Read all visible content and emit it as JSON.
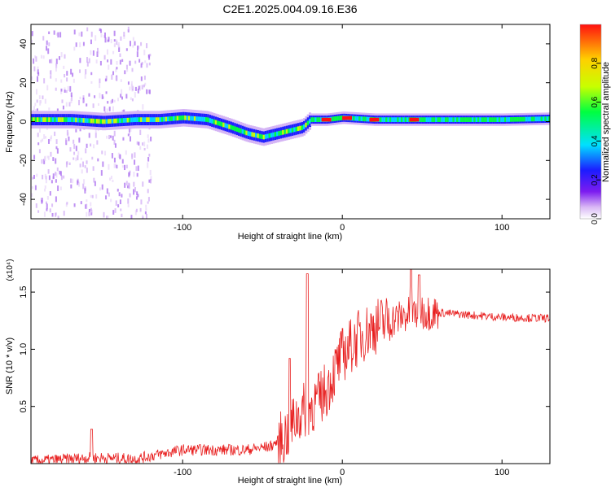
{
  "title": "C2E1.2025.004.09.16.E36",
  "colors": {
    "signal": "#e82020",
    "axis": "#000000",
    "colorbar_stops": [
      "#ffffff",
      "#d9b8f5",
      "#7c1cf0",
      "#1c1cff",
      "#00e0ff",
      "#00ff40",
      "#c8ff00",
      "#ffd000",
      "#ff1010"
    ]
  },
  "chart_data": [
    {
      "type": "heatmap",
      "title": "C2E1.2025.004.09.16.E36",
      "xlabel": "Height of straight line (km)",
      "ylabel": "Frequency (Hz)",
      "xlim": [
        -195,
        130
      ],
      "ylim": [
        -50,
        50
      ],
      "x_ticks": [
        -100,
        0,
        100
      ],
      "x_tick_labels": [
        "-100",
        "0",
        "100"
      ],
      "y_ticks": [
        -40,
        -20,
        0,
        20,
        40
      ],
      "y_tick_labels": [
        "-40",
        "-20",
        "0",
        "20",
        "40"
      ],
      "colorbar": {
        "label": "Normalized spectral amplitude",
        "range": [
          0,
          1
        ],
        "ticks": [
          0,
          0.2,
          0.4,
          0.6,
          0.8
        ],
        "tick_labels": [
          "0.0",
          "0.2",
          "0.4",
          "0.6",
          "0.8"
        ]
      },
      "ridge": {
        "x": [
          -195,
          -170,
          -150,
          -130,
          -115,
          -100,
          -85,
          -70,
          -60,
          -50,
          -40,
          -30,
          -25,
          -20,
          -10,
          0,
          20,
          50,
          80,
          100,
          130
        ],
        "y": [
          1,
          1,
          0,
          1,
          1,
          2,
          1,
          -3,
          -6,
          -8,
          -6,
          -4,
          -3,
          1,
          1,
          2,
          1,
          1,
          1,
          1,
          1.5
        ]
      },
      "peak_x": [
        -10,
        3,
        20,
        45
      ]
    },
    {
      "type": "line",
      "xlabel": "Height of straight line (km)",
      "ylabel": "SNR (10 * v/v)",
      "y_multiplier": "(x10⁴)",
      "xlim": [
        -195,
        130
      ],
      "ylim": [
        0,
        1.7
      ],
      "x_ticks": [
        -100,
        0,
        100
      ],
      "x_tick_labels": [
        "-100",
        "0",
        "100"
      ],
      "y_ticks": [
        0.5,
        1.0,
        1.5
      ],
      "y_tick_labels": [
        "0.5",
        "1.0",
        "1.5"
      ],
      "envelope": {
        "x": [
          -195,
          -170,
          -160,
          -150,
          -130,
          -115,
          -100,
          -80,
          -60,
          -45,
          -35,
          -30,
          -25,
          -20,
          -15,
          -10,
          -5,
          0,
          10,
          20,
          30,
          40,
          50,
          60,
          80,
          100,
          130
        ],
        "y": [
          0.02,
          0.04,
          0.05,
          0.05,
          0.04,
          0.08,
          0.12,
          0.12,
          0.12,
          0.15,
          0.25,
          0.38,
          0.45,
          0.5,
          0.55,
          0.65,
          0.8,
          0.95,
          1.1,
          1.2,
          1.25,
          1.3,
          1.33,
          1.32,
          1.3,
          1.28,
          1.27
        ]
      },
      "spikes": [
        {
          "x": -157,
          "y": 0.3
        },
        {
          "x": -33,
          "y": 0.92
        },
        {
          "x": -22,
          "y": 1.66
        },
        {
          "x": 43,
          "y": 1.7
        },
        {
          "x": 48,
          "y": 1.65
        }
      ]
    }
  ]
}
